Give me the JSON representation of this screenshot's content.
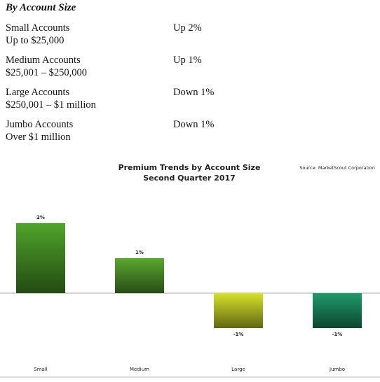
{
  "header": {
    "title": "By Account Size"
  },
  "table": {
    "rows": [
      [
        "Small Accounts",
        "Up to $25,000",
        "Up 2%"
      ],
      [
        "Medium Accounts",
        "$25,001 – $250,000",
        "Up 1%"
      ],
      [
        "Large Accounts",
        "$250,001 – $1 million",
        "Down 1%"
      ],
      [
        "Jumbo Accounts",
        "Over $1 million",
        "Down 1%"
      ]
    ]
  },
  "chart_data": {
    "type": "bar",
    "title": "Premium Trends by Account Size",
    "subtitle": "Second Quarter 2017",
    "source": "Source: MarketScout Corporation",
    "categories": [
      "Small",
      "Medium",
      "Large",
      "Jumbo"
    ],
    "values": [
      2,
      1,
      -1,
      -1
    ],
    "value_labels": [
      "2%",
      "1%",
      "-1%",
      "-1%"
    ],
    "colors": [
      "#4fa52a",
      "#5aa830",
      "#d6e22a",
      "#1f9a6a"
    ]
  }
}
